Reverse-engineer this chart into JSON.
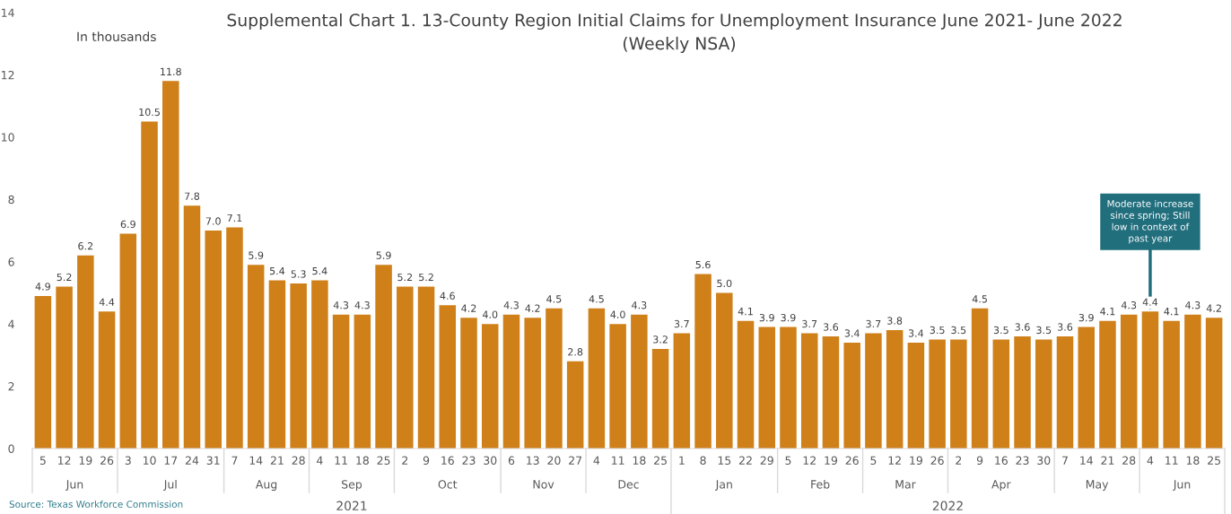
{
  "chart_data": {
    "type": "bar",
    "title": "Supplemental Chart 1. 13-County Region Initial Claims for Unemployment Insurance June 2021- June 2022",
    "subtitle": "(Weekly NSA)",
    "ylabel": "In thousands",
    "x": [
      "2021-06-05",
      "2021-06-12",
      "2021-06-19",
      "2021-06-26",
      "2021-07-03",
      "2021-07-10",
      "2021-07-17",
      "2021-07-24",
      "2021-07-31",
      "2021-08-07",
      "2021-08-14",
      "2021-08-21",
      "2021-08-28",
      "2021-09-04",
      "2021-09-11",
      "2021-09-18",
      "2021-09-25",
      "2021-10-02",
      "2021-10-09",
      "2021-10-16",
      "2021-10-23",
      "2021-10-30",
      "2021-11-06",
      "2021-11-13",
      "2021-11-20",
      "2021-11-27",
      "2021-12-04",
      "2021-12-11",
      "2021-12-18",
      "2021-12-25",
      "2022-01-01",
      "2022-01-08",
      "2022-01-15",
      "2022-01-22",
      "2022-01-29",
      "2022-02-05",
      "2022-02-12",
      "2022-02-19",
      "2022-02-26",
      "2022-03-05",
      "2022-03-12",
      "2022-03-19",
      "2022-03-26",
      "2022-04-02",
      "2022-04-09",
      "2022-04-16",
      "2022-04-23",
      "2022-04-30",
      "2022-05-07",
      "2022-05-14",
      "2022-05-21",
      "2022-05-28",
      "2022-06-04",
      "2022-06-11",
      "2022-06-18",
      "2022-06-25"
    ],
    "values": [
      4.9,
      5.2,
      6.2,
      4.4,
      6.9,
      10.5,
      11.8,
      7.8,
      7.0,
      7.1,
      5.9,
      5.4,
      5.3,
      5.4,
      4.3,
      4.3,
      5.9,
      5.2,
      5.2,
      4.6,
      4.2,
      4.0,
      4.3,
      4.2,
      4.5,
      2.8,
      4.5,
      4.0,
      4.3,
      3.2,
      3.7,
      5.6,
      5.0,
      4.1,
      3.9,
      3.9,
      3.7,
      3.6,
      3.4,
      3.7,
      3.8,
      3.4,
      3.5,
      3.5,
      4.5,
      3.5,
      3.6,
      3.5,
      3.6,
      3.9,
      4.1,
      4.3,
      4.4,
      4.1,
      4.3,
      4.2
    ],
    "value_labels": [
      "4.9",
      "5.2",
      "6.2",
      "4.4",
      "6.9",
      "10.5",
      "11.8",
      "7.8",
      "7.0",
      "7.1",
      "5.9",
      "5.4",
      "5.3",
      "5.4",
      "4.3",
      "4.3",
      "5.9",
      "5.2",
      "5.2",
      "4.6",
      "4.2",
      "4.0",
      "4.3",
      "4.2",
      "4.5",
      "2.8",
      "4.5",
      "4.0",
      "4.3",
      "3.2",
      "3.7",
      "5.6",
      "5.0",
      "4.1",
      "3.9",
      "3.9",
      "3.7",
      "3.6",
      "3.4",
      "3.7",
      "3.8",
      "3.4",
      "3.5",
      "3.5",
      "4.5",
      "3.5",
      "3.6",
      "3.5",
      "3.6",
      "3.9",
      "4.1",
      "4.3",
      "4.4",
      "4.1",
      "4.3",
      "4.2"
    ],
    "color": "#cf8019",
    "xlim": [
      "2021-06-01T12:00",
      "2022-06-28T12:00"
    ],
    "xticks": [
      {
        "value": "2021-06-05",
        "label": "5"
      },
      {
        "value": "2021-06-12",
        "label": "12"
      },
      {
        "value": "2021-06-19",
        "label": "19"
      },
      {
        "value": "2021-06-26",
        "label": "26"
      },
      {
        "value": "2021-07-03",
        "label": "3"
      },
      {
        "value": "2021-07-10",
        "label": "10"
      },
      {
        "value": "2021-07-17",
        "label": "17"
      },
      {
        "value": "2021-07-24",
        "label": "24"
      },
      {
        "value": "2021-07-31",
        "label": "31"
      },
      {
        "value": "2021-08-07",
        "label": "7"
      },
      {
        "value": "2021-08-14",
        "label": "14"
      },
      {
        "value": "2021-08-21",
        "label": "21"
      },
      {
        "value": "2021-08-28",
        "label": "28"
      },
      {
        "value": "2021-09-04",
        "label": "4"
      },
      {
        "value": "2021-09-11",
        "label": "11"
      },
      {
        "value": "2021-09-18",
        "label": "18"
      },
      {
        "value": "2021-09-25",
        "label": "25"
      },
      {
        "value": "2021-10-02",
        "label": "2"
      },
      {
        "value": "2021-10-09",
        "label": "9"
      },
      {
        "value": "2021-10-16",
        "label": "16"
      },
      {
        "value": "2021-10-23",
        "label": "23"
      },
      {
        "value": "2021-10-30",
        "label": "30"
      },
      {
        "value": "2021-11-06",
        "label": "6"
      },
      {
        "value": "2021-11-13",
        "label": "13"
      },
      {
        "value": "2021-11-20",
        "label": "20"
      },
      {
        "value": "2021-11-27",
        "label": "27"
      },
      {
        "value": "2021-12-04",
        "label": "4"
      },
      {
        "value": "2021-12-11",
        "label": "11"
      },
      {
        "value": "2021-12-18",
        "label": "18"
      },
      {
        "value": "2021-12-25",
        "label": "25"
      },
      {
        "value": "2022-01-01",
        "label": "1"
      },
      {
        "value": "2022-01-08",
        "label": "8"
      },
      {
        "value": "2022-01-15",
        "label": "15"
      },
      {
        "value": "2022-01-22",
        "label": "22"
      },
      {
        "value": "2022-01-29",
        "label": "29"
      },
      {
        "value": "2022-02-05",
        "label": "5"
      },
      {
        "value": "2022-02-12",
        "label": "12"
      },
      {
        "value": "2022-02-19",
        "label": "19"
      },
      {
        "value": "2022-02-26",
        "label": "26"
      },
      {
        "value": "2022-03-05",
        "label": "5"
      },
      {
        "value": "2022-03-12",
        "label": "12"
      },
      {
        "value": "2022-03-19",
        "label": "19"
      },
      {
        "value": "2022-03-26",
        "label": "26"
      },
      {
        "value": "2022-04-02",
        "label": "2"
      },
      {
        "value": "2022-04-09",
        "label": "9"
      },
      {
        "value": "2022-04-16",
        "label": "16"
      },
      {
        "value": "2022-04-23",
        "label": "23"
      },
      {
        "value": "2022-04-30",
        "label": "30"
      },
      {
        "value": "2022-05-07",
        "label": "7"
      },
      {
        "value": "2022-05-14",
        "label": "14"
      },
      {
        "value": "2022-05-21",
        "label": "21"
      },
      {
        "value": "2022-05-28",
        "label": "28"
      },
      {
        "value": "2022-06-04",
        "label": "4"
      },
      {
        "value": "2022-06-11",
        "label": "11"
      },
      {
        "value": "2022-06-18",
        "label": "18"
      },
      {
        "value": "2022-06-25",
        "label": "25"
      }
    ],
    "ylim": [
      0,
      14
    ],
    "yticks": [
      0,
      2,
      4,
      6,
      8,
      10,
      12,
      14
    ],
    "grid": false,
    "annotations": [
      "Jun",
      "Jul",
      "Aug",
      "Sep",
      "Oct",
      "Nov",
      "Dec",
      "Jan",
      "Feb",
      "Mar",
      "Apr",
      "May",
      "Jun",
      "2021",
      "2022",
      "Source: Texas Workforce Commission",
      {
        "text": "Moderate increase\nsince spring; Still\nlow in context of\npast year",
        "x": "2022-06-04",
        "y": 4.4
      }
    ]
  }
}
